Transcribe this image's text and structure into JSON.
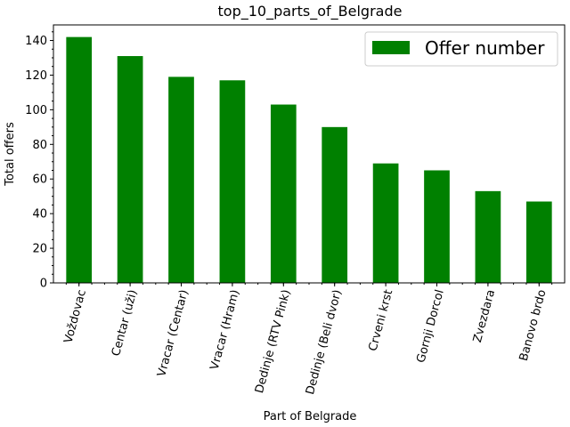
{
  "chart_data": {
    "type": "bar",
    "title": "top_10_parts_of_Belgrade",
    "xlabel": "Part of Belgrade",
    "ylabel": "Total offers",
    "categories": [
      "Voždovac",
      "Centar (uži)",
      "Vracar (Centar)",
      "Vracar (Hram)",
      "Dedinje (RTV Pink)",
      "Dedinje (Beli dvor)",
      "Crveni krst",
      "Gornji Dorcol",
      "Zvezdara",
      "Banovo brdo"
    ],
    "series": [
      {
        "name": "Offer number",
        "values": [
          142,
          131,
          119,
          117,
          103,
          90,
          69,
          65,
          53,
          47
        ],
        "color": "#008000"
      }
    ],
    "ylim": [
      0,
      149
    ],
    "yticks": [
      0,
      20,
      40,
      60,
      80,
      100,
      120,
      140
    ],
    "grid": false,
    "legend_position": "top-right"
  }
}
